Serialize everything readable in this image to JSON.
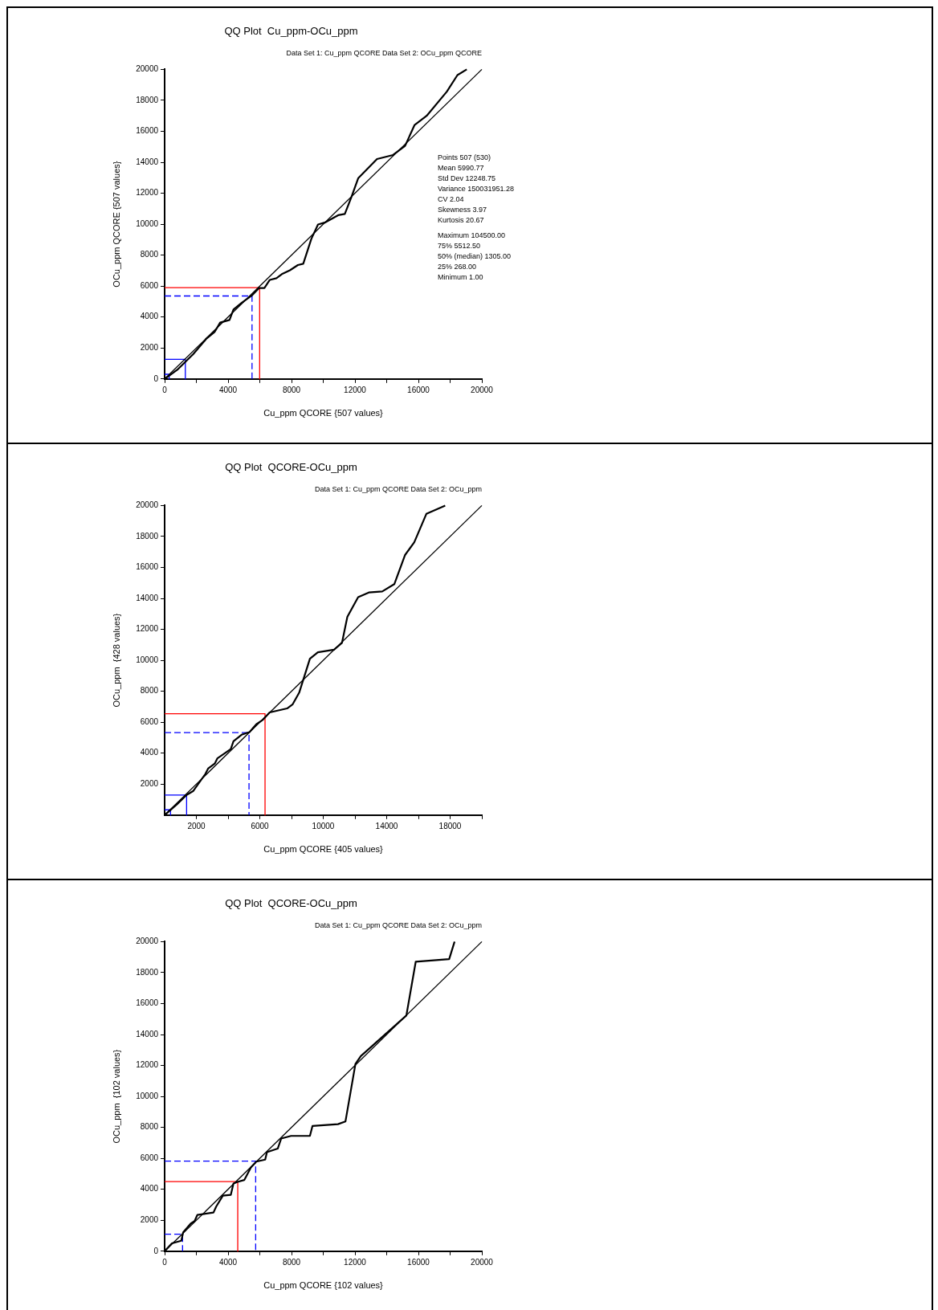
{
  "chart_data": [
    {
      "type": "line",
      "title": "QQ Plot  Cu_ppm-OCu_ppm",
      "subtitle": "Data Set 1: Cu_ppm QCORE Data Set 2: OCu_ppm QCORE",
      "xlabel": "Cu_ppm QCORE {507 values}",
      "ylabel": "OCu_ppm QCORE {507 values}",
      "xlim": [
        0,
        20000
      ],
      "ylim": [
        0,
        20000
      ],
      "xticks": [
        0,
        {
          "value": 2000,
          "label": null
        },
        4000,
        {
          "value": 6000,
          "label": null
        },
        8000,
        {
          "value": 10000,
          "label": null
        },
        12000,
        {
          "value": 14000,
          "label": null
        },
        16000,
        {
          "value": 18000,
          "label": null
        },
        20000
      ],
      "yticks": [
        0,
        2000,
        4000,
        6000,
        8000,
        10000,
        12000,
        14000,
        16000,
        18000,
        20000
      ],
      "grid": false,
      "legend": false,
      "marker": "none",
      "series": [
        {
          "color": "#000000",
          "line_style": "solid",
          "x": [
            0,
            795,
            1810,
            2650,
            3160,
            3500,
            4090,
            4340,
            4850,
            5530,
            5950,
            6290,
            6630,
            7050,
            7390,
            7900,
            8400,
            8740,
            9250,
            9670,
            10090,
            10940,
            11360,
            11780,
            12210,
            13390,
            14400,
            15160,
            15760,
            16520,
            17790,
            18460,
            19050
          ],
          "values": [
            0,
            590,
            1610,
            2620,
            3050,
            3640,
            3810,
            4480,
            4910,
            5420,
            5870,
            5870,
            6400,
            6510,
            6770,
            7020,
            7360,
            7440,
            9050,
            9980,
            10100,
            10580,
            10660,
            11760,
            12980,
            14210,
            14470,
            15060,
            16410,
            17000,
            18560,
            19630,
            20000
          ]
        },
        {
          "color": "#000000",
          "line_style": "solid",
          "x": [
            0,
            20000
          ],
          "values": [
            0,
            20000
          ]
        },
        {
          "color": "#ff0000",
          "line_style": "solid",
          "x": [
            0,
            5990,
            5990
          ],
          "values": [
            5900,
            5900,
            0
          ]
        },
        {
          "color": "#0000ff",
          "line_style": "dashed",
          "x": [
            0,
            5510,
            5510
          ],
          "values": [
            5360,
            5360,
            0
          ]
        },
        {
          "color": "#0000ff",
          "line_style": "solid",
          "x": [
            0,
            1305,
            1305
          ],
          "values": [
            1270,
            1270,
            0
          ]
        },
        {
          "color": "#0000ff",
          "line_style": "solid",
          "x": [
            0,
            290,
            290
          ],
          "values": [
            300,
            300,
            0
          ]
        }
      ],
      "annotations": [
        "Points 507 (530)",
        "Mean 5990.77",
        "Std Dev 12248.75",
        "Variance 150031951.28",
        "CV 2.04",
        "Skewness 3.97",
        "Kurtosis 20.67",
        "Maximum 104500.00",
        "75% 5512.50",
        "50% (median) 1305.00",
        "25% 268.00",
        "Minimum 1.00"
      ]
    },
    {
      "type": "line",
      "title": "QQ Plot  QCORE-OCu_ppm",
      "subtitle": "Data Set 1: Cu_ppm QCORE Data Set 2: OCu_ppm",
      "xlabel": "Cu_ppm QCORE {405 values}",
      "ylabel": "OCu_ppm  {428 values}",
      "xlim": [
        0,
        20000
      ],
      "ylim": [
        0,
        20000
      ],
      "xticks": [
        2000,
        {
          "value": 4000,
          "label": null
        },
        6000,
        {
          "value": 8000,
          "label": null
        },
        10000,
        {
          "value": 12000,
          "label": null
        },
        14000,
        {
          "value": 16000,
          "label": null
        },
        18000,
        {
          "value": 20000,
          "label": null
        }
      ],
      "yticks": [
        2000,
        4000,
        6000,
        8000,
        10000,
        12000,
        14000,
        16000,
        18000,
        20000
      ],
      "grid": false,
      "legend": false,
      "marker": "none",
      "series": [
        {
          "color": "#000000",
          "line_style": "solid",
          "x": [
            0,
            790,
            1385,
            1810,
            2570,
            2740,
            3160,
            3330,
            4170,
            4340,
            4850,
            5350,
            5780,
            6200,
            6620,
            7720,
            8060,
            8480,
            9160,
            9660,
            10680,
            11180,
            11520,
            12200,
            12870,
            13720,
            14480,
            15150,
            15740,
            16500,
            17690
          ],
          "values": [
            0,
            710,
            1300,
            1560,
            2660,
            3000,
            3330,
            3670,
            4260,
            4770,
            5190,
            5360,
            5870,
            6160,
            6630,
            6890,
            7140,
            7900,
            10100,
            10520,
            10690,
            11120,
            12810,
            14080,
            14380,
            14450,
            14920,
            16790,
            17630,
            19460,
            20000
          ]
        },
        {
          "color": "#000000",
          "line_style": "solid",
          "x": [
            0,
            20000
          ],
          "values": [
            0,
            20000
          ]
        },
        {
          "color": "#ff0000",
          "line_style": "solid",
          "x": [
            0,
            6330,
            6330
          ],
          "values": [
            6550,
            6550,
            0
          ]
        },
        {
          "color": "#0000ff",
          "line_style": "dashed",
          "x": [
            0,
            5320,
            5320
          ],
          "values": [
            5330,
            5330,
            0
          ]
        },
        {
          "color": "#0000ff",
          "line_style": "solid",
          "x": [
            0,
            1385,
            1385
          ],
          "values": [
            1290,
            1290,
            0
          ]
        },
        {
          "color": "#0000ff",
          "line_style": "solid",
          "x": [
            0,
            370,
            370
          ],
          "values": [
            340,
            340,
            0
          ]
        }
      ]
    },
    {
      "type": "line",
      "title": "QQ Plot  QCORE-OCu_ppm",
      "subtitle": "Data Set 1: Cu_ppm QCORE Data Set 2: OCu_ppm",
      "xlabel": "Cu_ppm QCORE {102 values}",
      "ylabel": "OCu_ppm  {102 values}",
      "xlim": [
        0,
        20000
      ],
      "ylim": [
        0,
        20000
      ],
      "xticks": [
        0,
        {
          "value": 2000,
          "label": null
        },
        4000,
        {
          "value": 6000,
          "label": null
        },
        8000,
        {
          "value": 10000,
          "label": null
        },
        12000,
        {
          "value": 14000,
          "label": null
        },
        16000,
        {
          "value": 18000,
          "label": null
        },
        20000
      ],
      "yticks": [
        0,
        2000,
        4000,
        6000,
        8000,
        10000,
        12000,
        14000,
        16000,
        18000,
        20000
      ],
      "grid": false,
      "legend": false,
      "marker": "none",
      "series": [
        {
          "color": "#000000",
          "line_style": "solid",
          "x": [
            0,
            460,
            1050,
            1170,
            1640,
            1890,
            2060,
            3080,
            3250,
            3670,
            4170,
            4340,
            4600,
            5020,
            5440,
            5780,
            6340,
            6450,
            7130,
            7350,
            7970,
            9160,
            9320,
            10930,
            11400,
            12030,
            12370,
            15240,
            15830,
            17940,
            18280
          ],
          "values": [
            0,
            510,
            680,
            1220,
            1780,
            1950,
            2340,
            2500,
            2880,
            3590,
            3640,
            4370,
            4480,
            4600,
            5410,
            5790,
            5920,
            6400,
            6630,
            7280,
            7450,
            7450,
            8090,
            8210,
            8380,
            12100,
            12610,
            15230,
            18700,
            18870,
            20000
          ]
        },
        {
          "color": "#000000",
          "line_style": "solid",
          "x": [
            0,
            20000
          ],
          "values": [
            0,
            20000
          ]
        },
        {
          "color": "#ff0000",
          "line_style": "solid",
          "x": [
            0,
            4610,
            4610
          ],
          "values": [
            4500,
            4500,
            0
          ]
        },
        {
          "color": "#0000ff",
          "line_style": "dashed",
          "x": [
            0,
            5740,
            5740
          ],
          "values": [
            5820,
            5820,
            0
          ]
        },
        {
          "color": "#0000ff",
          "line_style": "dashed",
          "x": [
            0,
            1130,
            1130
          ],
          "values": [
            1100,
            1100,
            0
          ]
        }
      ]
    }
  ]
}
